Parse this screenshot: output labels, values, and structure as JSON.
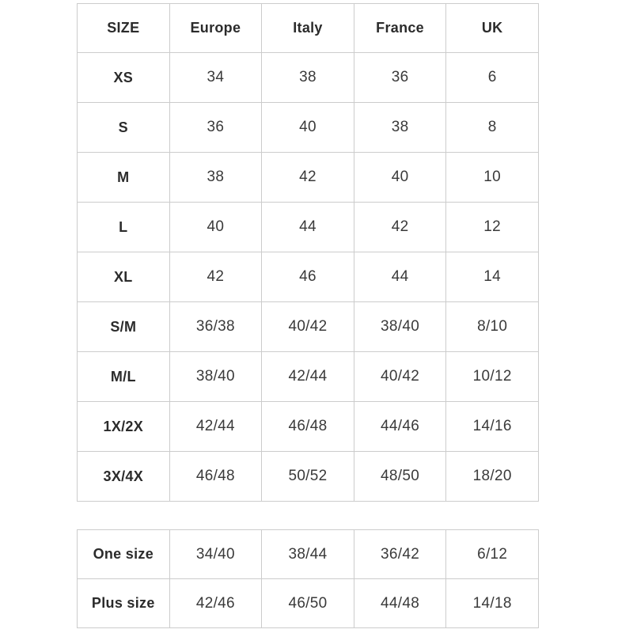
{
  "page": {
    "background_color": "#ffffff",
    "border_color": "#cccccc",
    "text_color": "#3a3a3a",
    "bold_text_color": "#2b2b2b"
  },
  "main_table": {
    "headers": [
      "SIZE",
      "Europe",
      "Italy",
      "France",
      "UK"
    ],
    "rows": [
      {
        "size": "XS",
        "values": [
          "34",
          "38",
          "36",
          "6"
        ]
      },
      {
        "size": "S",
        "values": [
          "36",
          "40",
          "38",
          "8"
        ]
      },
      {
        "size": "M",
        "values": [
          "38",
          "42",
          "40",
          "10"
        ]
      },
      {
        "size": "L",
        "values": [
          "40",
          "44",
          "42",
          "12"
        ]
      },
      {
        "size": "XL",
        "values": [
          "42",
          "46",
          "44",
          "14"
        ]
      },
      {
        "size": "S/M",
        "values": [
          "36/38",
          "40/42",
          "38/40",
          "8/10"
        ]
      },
      {
        "size": "M/L",
        "values": [
          "38/40",
          "42/44",
          "40/42",
          "10/12"
        ]
      },
      {
        "size": "1X/2X",
        "values": [
          "42/44",
          "46/48",
          "44/46",
          "14/16"
        ]
      },
      {
        "size": "3X/4X",
        "values": [
          "46/48",
          "50/52",
          "48/50",
          "18/20"
        ]
      }
    ]
  },
  "secondary_table": {
    "rows": [
      {
        "size": "One size",
        "values": [
          "34/40",
          "38/44",
          "36/42",
          "6/12"
        ]
      },
      {
        "size": "Plus size",
        "values": [
          "42/46",
          "46/50",
          "44/48",
          "14/18"
        ]
      }
    ]
  }
}
